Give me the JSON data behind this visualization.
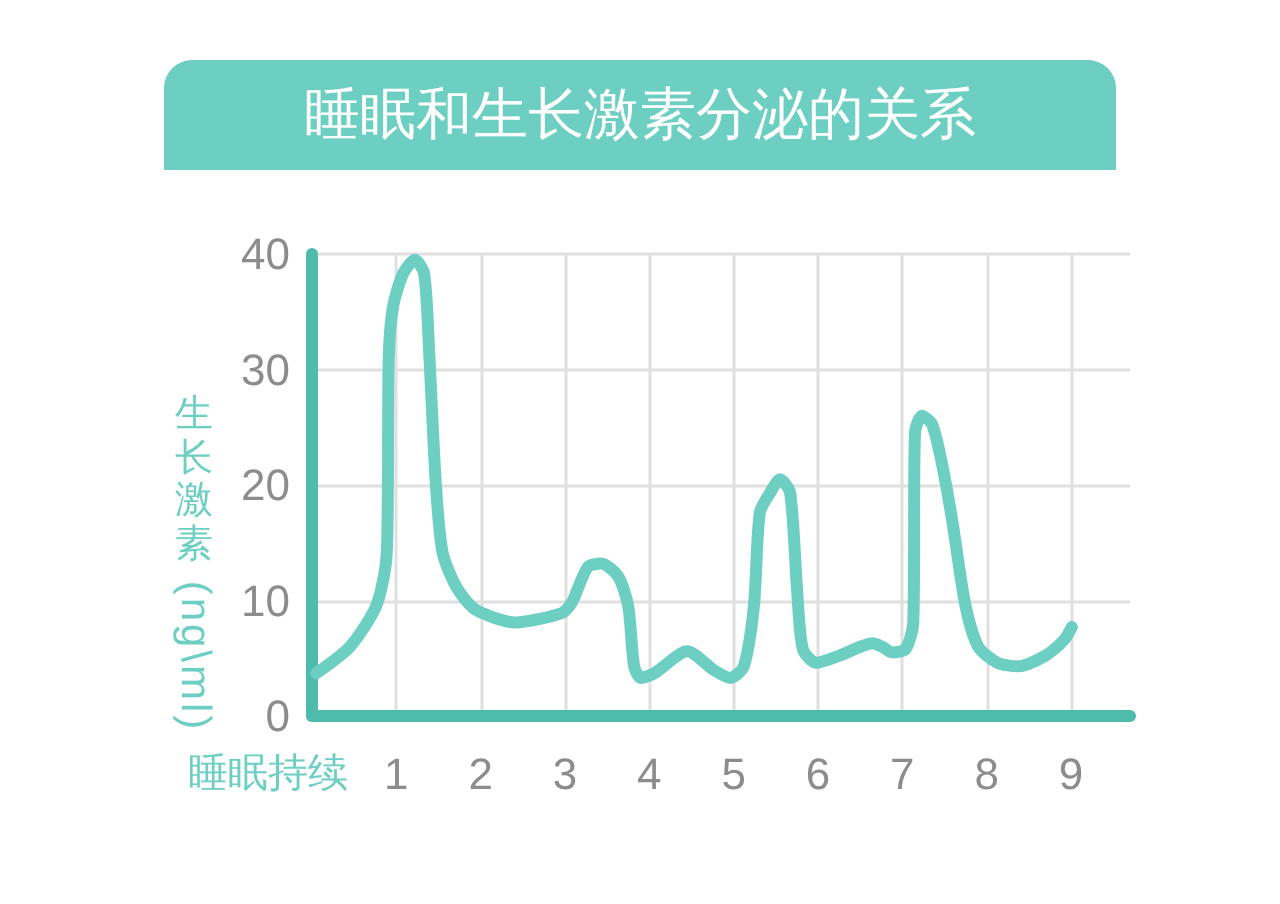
{
  "chart_data": {
    "type": "line",
    "title": "睡眠和生长激素分泌的关系",
    "xlabel": "睡眠持续",
    "ylabel": "生长激素 (ng\\ml)",
    "x": [
      0.05,
      0.45,
      0.76,
      0.88,
      0.9,
      0.91,
      0.96,
      1.08,
      1.22,
      1.33,
      1.39,
      1.47,
      1.55,
      1.71,
      1.94,
      2.41,
      2.96,
      3.08,
      3.27,
      3.43,
      3.63,
      3.75,
      3.82,
      3.9,
      4.06,
      4.45,
      4.76,
      4.96,
      5.12,
      5.24,
      5.31,
      5.43,
      5.55,
      5.67,
      5.75,
      5.82,
      5.98,
      6.25,
      6.65,
      6.76,
      6.88,
      7.04,
      7.13,
      7.15,
      7.23,
      7.35,
      7.46,
      7.59,
      7.75,
      7.9,
      8.13,
      8.37,
      8.69,
      8.92,
      9.01
    ],
    "series": [
      {
        "color": "#6ccfc2",
        "values": [
          3.7,
          6.0,
          9.5,
          13.5,
          20.0,
          31.0,
          35.4,
          38.3,
          39.5,
          38.3,
          31.4,
          19.9,
          14.1,
          11.2,
          9.2,
          8.1,
          8.9,
          9.8,
          12.9,
          13.2,
          12.1,
          9.5,
          4.3,
          3.3,
          3.7,
          5.6,
          4.0,
          3.3,
          4.3,
          9.5,
          17.6,
          19.3,
          20.5,
          19.3,
          11.2,
          5.8,
          4.6,
          5.2,
          6.3,
          6.0,
          5.5,
          5.8,
          8.1,
          24.5,
          26.0,
          25.3,
          22.2,
          17.0,
          9.5,
          6.0,
          4.6,
          4.3,
          5.2,
          6.6,
          7.7
        ]
      }
    ],
    "xlim": [
      0,
      9.7
    ],
    "xticks": [
      1,
      2,
      3,
      4,
      5,
      6,
      7,
      8,
      9
    ],
    "ylim": [
      0,
      40
    ],
    "yticks": [
      0,
      10,
      20,
      30,
      40
    ],
    "grid": true,
    "marker": "none"
  }
}
